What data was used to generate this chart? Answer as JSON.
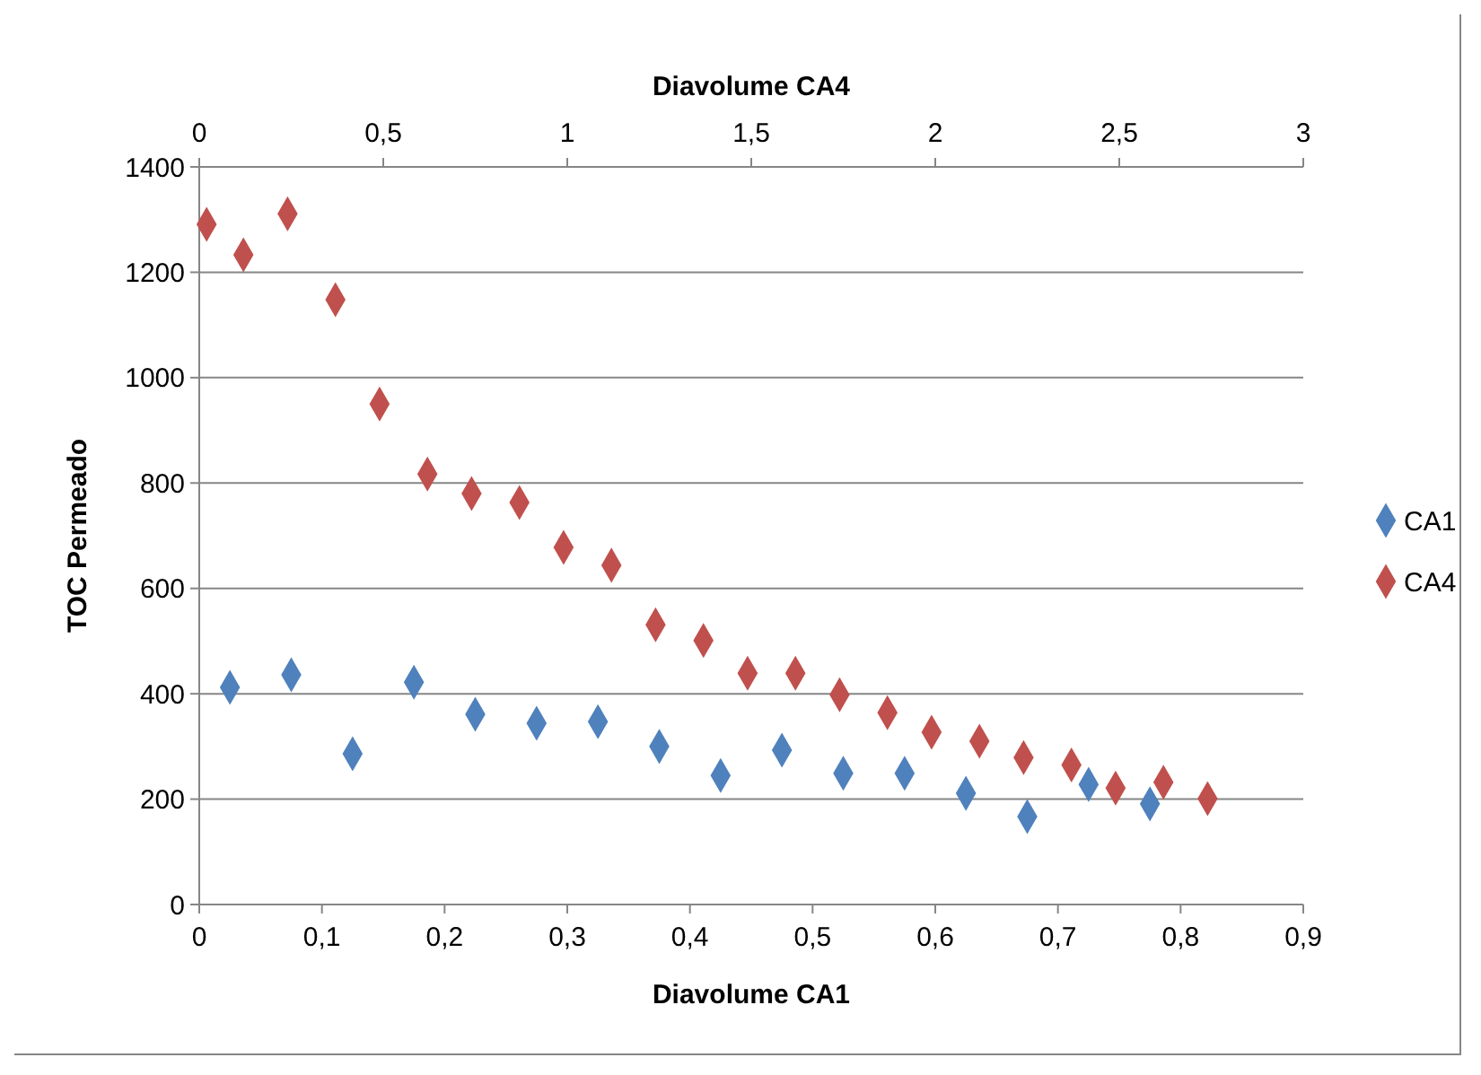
{
  "chart_data": {
    "type": "scatter",
    "xlabel": "Diavolume CA1",
    "x2label": "Diavolume CA4",
    "ylabel": "TOC Permeado",
    "xlim": [
      0,
      0.9
    ],
    "xticks": [
      0,
      {
        "value": 0.1,
        "label": "0,1"
      },
      {
        "value": 0.2,
        "label": "0,2"
      },
      {
        "value": 0.3,
        "label": "0,3"
      },
      {
        "value": 0.4,
        "label": "0,4"
      },
      {
        "value": 0.5,
        "label": "0,5"
      },
      {
        "value": 0.6,
        "label": "0,6"
      },
      {
        "value": 0.7,
        "label": "0,7"
      },
      {
        "value": 0.8,
        "label": "0,8"
      },
      {
        "value": 0.9,
        "label": "0,9"
      }
    ],
    "x2lim": [
      0,
      3
    ],
    "x2ticks": [
      0,
      {
        "value": 0.5,
        "label": "0,5"
      },
      1,
      {
        "value": 1.5,
        "label": "1,5"
      },
      2,
      {
        "value": 2.5,
        "label": "2,5"
      },
      3
    ],
    "ylim": [
      0,
      1400
    ],
    "yticks": [
      0,
      200,
      400,
      600,
      800,
      1000,
      1200,
      1400
    ],
    "grid": "y",
    "legend": "right",
    "marker": "diamond",
    "series": [
      {
        "name": "CA1",
        "color": "#4f81bd",
        "x": [
          0.025,
          0.075,
          0.125,
          0.175,
          0.225,
          0.275,
          0.325,
          0.375,
          0.425,
          0.475,
          0.525,
          0.575,
          0.625,
          0.675,
          0.725,
          0.775
        ],
        "values": [
          412,
          436,
          286,
          422,
          361,
          344,
          347,
          300,
          245,
          293,
          249,
          249,
          211,
          167,
          228,
          191
        ]
      },
      {
        "name": "CA4",
        "color": "#c0504d",
        "axis": "x2",
        "x": [
          0.02,
          0.12,
          0.24,
          0.37,
          0.49,
          0.62,
          0.74,
          0.87,
          0.99,
          1.12,
          1.24,
          1.37,
          1.49,
          1.62,
          1.74,
          1.87,
          1.99,
          2.12,
          2.24,
          2.37,
          2.49,
          2.62,
          2.74
        ],
        "values": [
          1291,
          1233,
          1311,
          1148,
          950,
          817,
          780,
          763,
          678,
          644,
          531,
          501,
          439,
          439,
          398,
          364,
          327,
          310,
          279,
          265,
          221,
          232,
          201
        ]
      }
    ]
  }
}
